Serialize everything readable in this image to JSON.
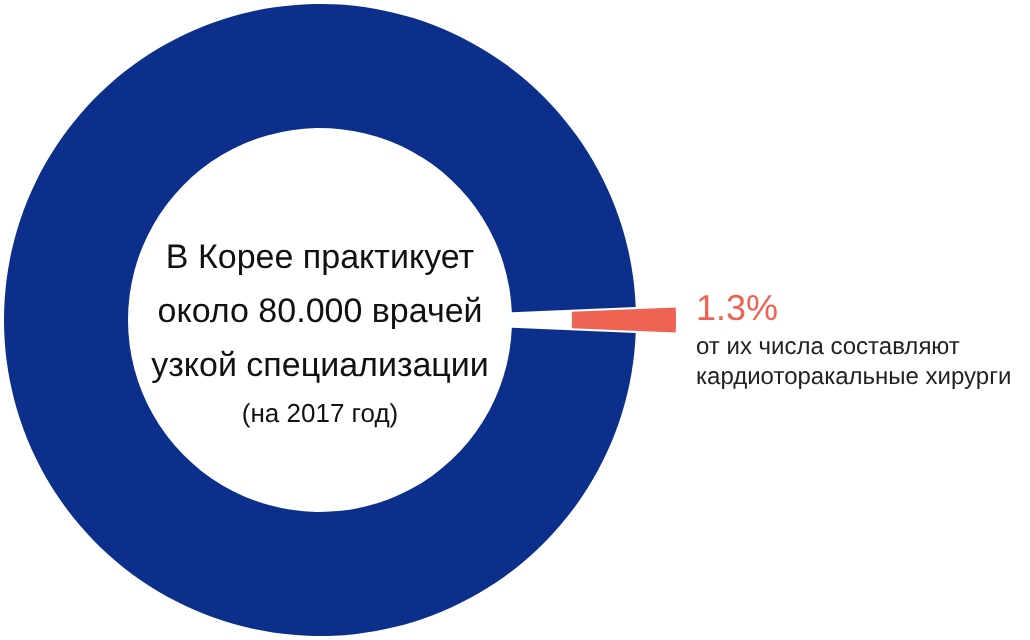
{
  "chart_data": {
    "type": "donut",
    "categories": [
      null,
      "от их числа составляют кардиоторакальные хирурги"
    ],
    "values": [
      98.7,
      1.3
    ],
    "colors": [
      "#0b2f8a",
      "#ee6352"
    ],
    "value_labels": [
      null,
      "1.3%"
    ],
    "annotations": [
      "В Корее практикует около 80.000 врачей узкой специализации",
      "(на 2017 год)"
    ]
  }
}
